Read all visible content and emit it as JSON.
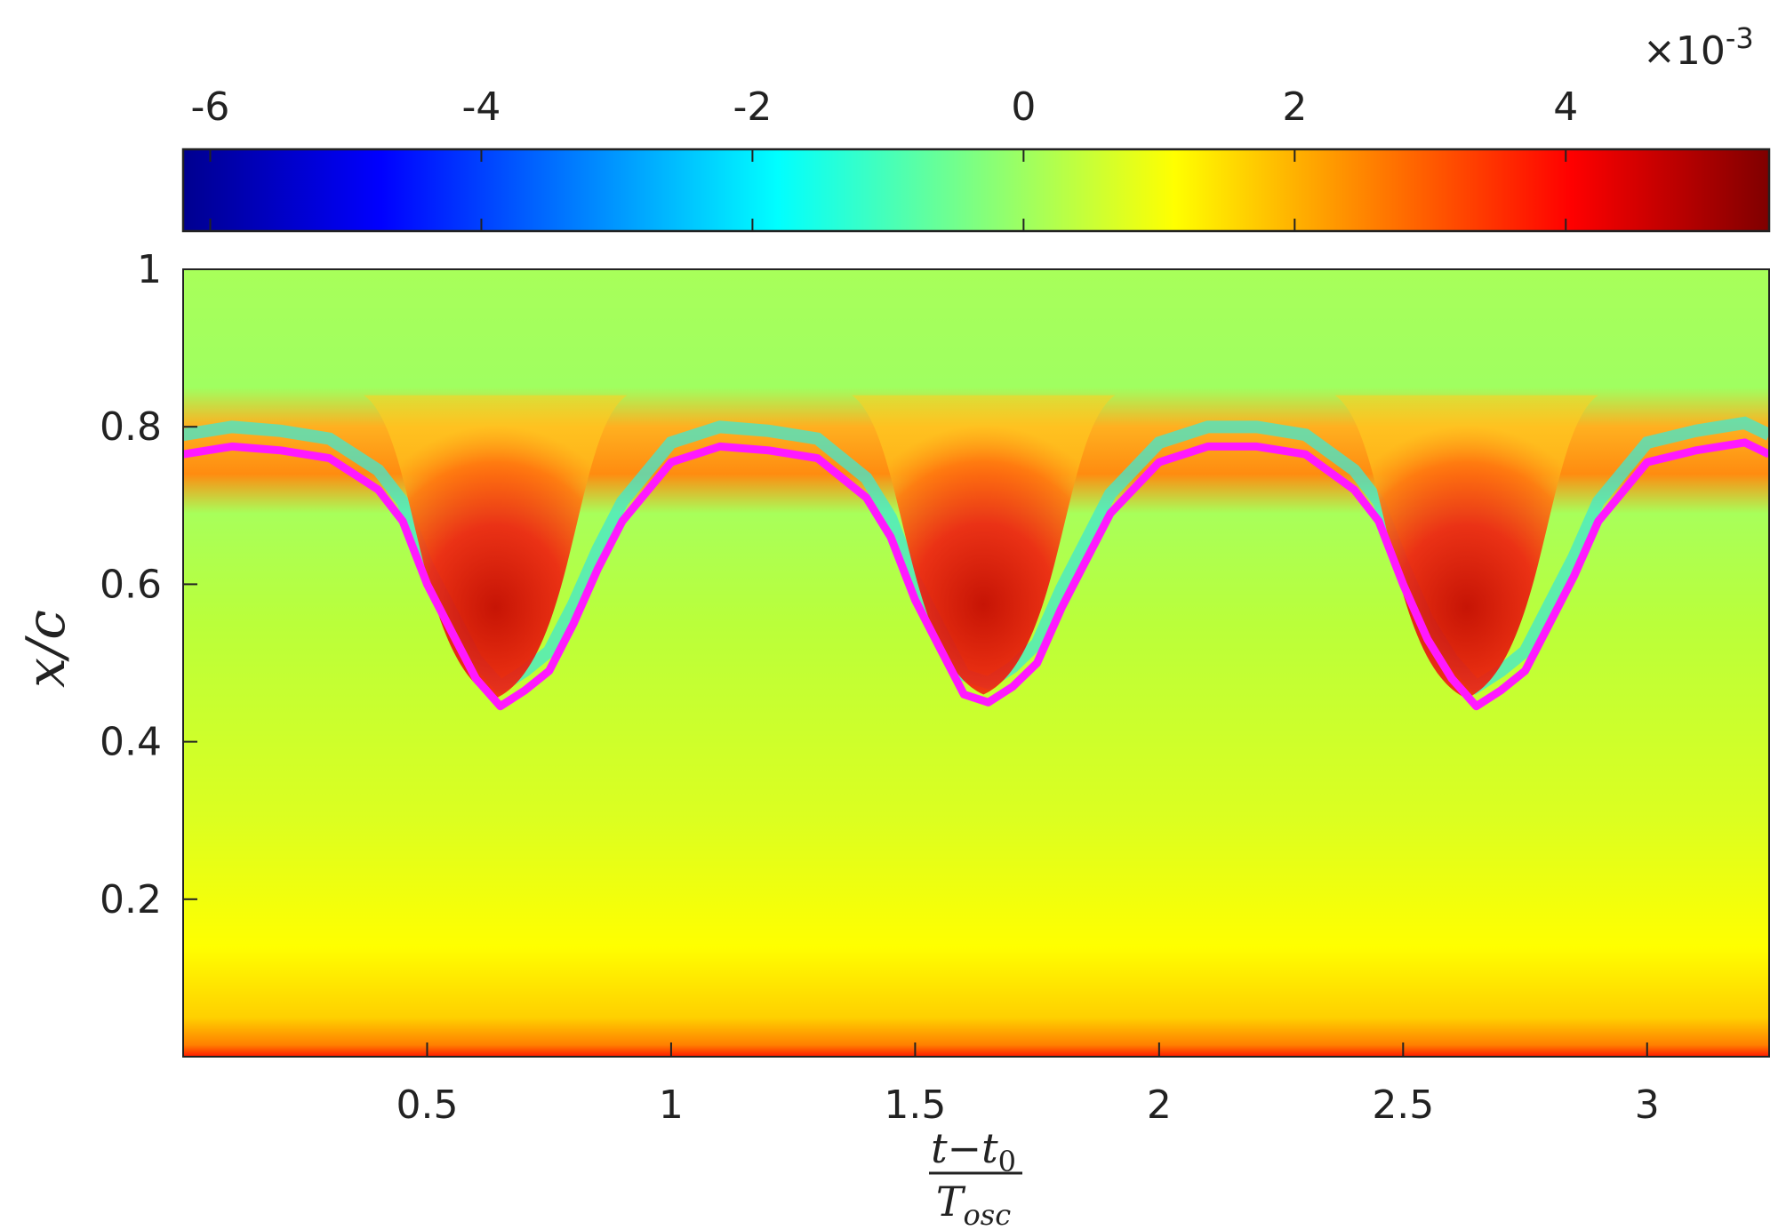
{
  "chart_data": {
    "type": "heatmap",
    "title": "",
    "xlabel": {
      "numerator": "t−t",
      "numerator_sub": "0",
      "denominator": "T",
      "denominator_sub": "osc"
    },
    "ylabel": "x/c",
    "xlim": [
      0,
      3.25
    ],
    "ylim": [
      0,
      1
    ],
    "xticks": [
      0.5,
      1,
      1.5,
      2,
      2.5,
      3
    ],
    "xtick_labels": [
      "0.5",
      "1",
      "1.5",
      "2",
      "2.5",
      "3"
    ],
    "yticks": [
      0.2,
      0.4,
      0.6,
      0.8,
      1
    ],
    "ytick_labels": [
      "0.2",
      "0.4",
      "0.6",
      "0.8",
      "1"
    ],
    "colorbar": {
      "orientation": "horizontal",
      "location": "top",
      "range": [
        -6.2,
        5.5
      ],
      "ticks": [
        -6,
        -4,
        -2,
        0,
        2,
        4
      ],
      "tick_labels": [
        "-6",
        "-4",
        "-2",
        "0",
        "2",
        "4"
      ],
      "exponent_label": "×10",
      "exponent": "-3",
      "colormap": "jet"
    },
    "series": [
      {
        "type": "line",
        "color": "#ff19ff",
        "x": [
          0.0,
          0.1,
          0.2,
          0.3,
          0.4,
          0.45,
          0.5,
          0.55,
          0.6,
          0.65,
          0.7,
          0.75,
          0.8,
          0.85,
          0.9,
          1.0,
          1.1,
          1.2,
          1.3,
          1.4,
          1.45,
          1.5,
          1.55,
          1.6,
          1.65,
          1.7,
          1.75,
          1.8,
          1.85,
          1.9,
          2.0,
          2.1,
          2.2,
          2.3,
          2.4,
          2.45,
          2.5,
          2.55,
          2.6,
          2.65,
          2.7,
          2.75,
          2.8,
          2.85,
          2.9,
          3.0,
          3.1,
          3.2,
          3.25
        ],
        "y": [
          0.765,
          0.775,
          0.77,
          0.76,
          0.72,
          0.68,
          0.6,
          0.54,
          0.48,
          0.445,
          0.465,
          0.49,
          0.55,
          0.62,
          0.68,
          0.755,
          0.775,
          0.77,
          0.76,
          0.71,
          0.66,
          0.58,
          0.52,
          0.46,
          0.45,
          0.47,
          0.5,
          0.57,
          0.63,
          0.69,
          0.755,
          0.775,
          0.775,
          0.765,
          0.72,
          0.68,
          0.6,
          0.53,
          0.48,
          0.445,
          0.465,
          0.49,
          0.55,
          0.61,
          0.68,
          0.755,
          0.77,
          0.78,
          0.765
        ]
      }
    ],
    "colors": {
      "band_orange": "#ffa31a",
      "core_red": "#e01010",
      "cyan_edge": "#40e8d0",
      "background_green_yellow": "#b5ff3a",
      "bottom_red": "#ff1a00"
    }
  }
}
